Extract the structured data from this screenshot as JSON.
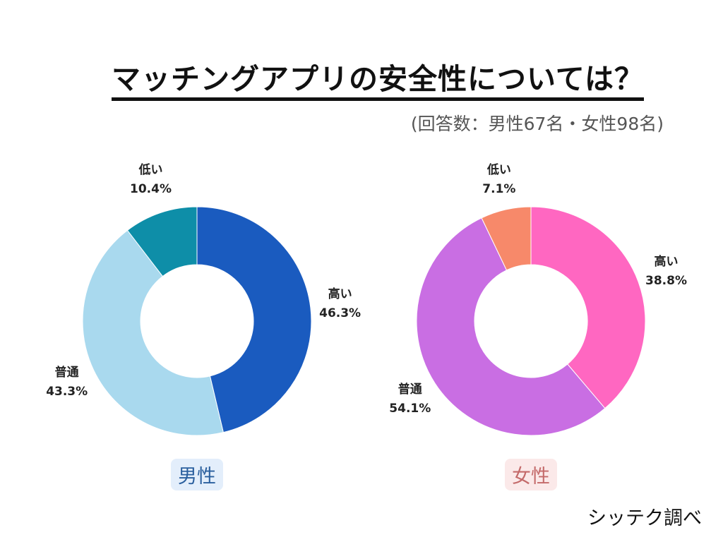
{
  "chart_data": [
    {
      "type": "pie",
      "variant": "donut",
      "name": "男性",
      "title": "マッチングアプリの安全性については？",
      "subtitle": "(回答数：男性67名・女性98名)",
      "slices": [
        {
          "label": "高い",
          "value": 46.3,
          "display": "46.3%",
          "color": "#1a5bbf"
        },
        {
          "label": "普通",
          "value": 43.3,
          "display": "43.3%",
          "color": "#a9d9ee"
        },
        {
          "label": "低い",
          "value": 10.4,
          "display": "10.4%",
          "color": "#0e8ea8"
        }
      ],
      "badge_color": "#2a5f9e",
      "badge_bg": "#e3eefb"
    },
    {
      "type": "pie",
      "variant": "donut",
      "name": "女性",
      "slices": [
        {
          "label": "高い",
          "value": 38.8,
          "display": "38.8%",
          "color": "#ff67c1"
        },
        {
          "label": "普通",
          "value": 54.1,
          "display": "54.1%",
          "color": "#c96ee3"
        },
        {
          "label": "低い",
          "value": 7.1,
          "display": "7.1%",
          "color": "#f7896a"
        }
      ],
      "badge_color": "#c46a6a",
      "badge_bg": "#fbe9e9"
    }
  ],
  "header": {
    "title": "マッチングアプリの安全性については？",
    "subtitle": "(回答数：男性67名・女性98名)"
  },
  "credit": "シッテク調べ"
}
